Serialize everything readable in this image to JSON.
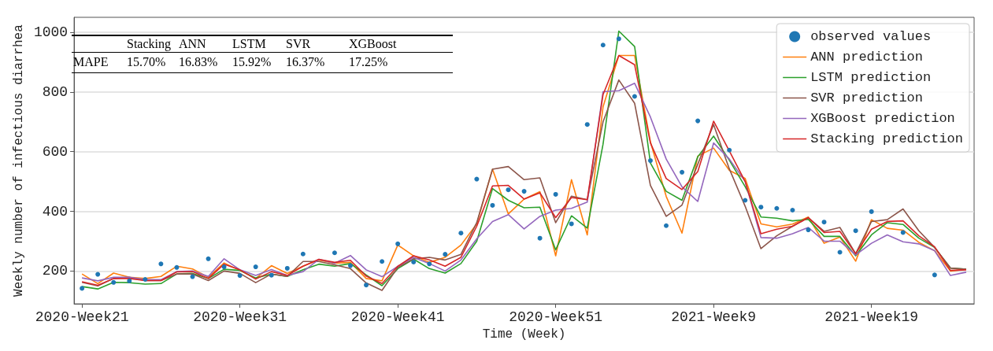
{
  "chart_data": {
    "type": "line",
    "xlabel": "Time (Week)",
    "ylabel": "Weekly number of infectious diarrhea",
    "categories": [
      "2020-Week21",
      null,
      null,
      null,
      null,
      null,
      null,
      null,
      null,
      null,
      "2020-Week31",
      null,
      null,
      null,
      null,
      null,
      null,
      null,
      null,
      null,
      "2020-Week41",
      null,
      null,
      null,
      null,
      null,
      null,
      null,
      null,
      null,
      "2020-Week51",
      null,
      null,
      null,
      null,
      null,
      null,
      null,
      null,
      null,
      "2021-Week9",
      null,
      null,
      null,
      null,
      null,
      null,
      null,
      null,
      null,
      "2021-Week19",
      null,
      null,
      null,
      null,
      null,
      null
    ],
    "ylim": [
      90,
      1050
    ],
    "yticks": [
      200,
      400,
      600,
      800,
      1000
    ],
    "grid": "y",
    "legend": "top right",
    "line_style": "solid",
    "marker": "none",
    "annotations": [
      "Stacking",
      "ANN",
      "LSTM",
      "SVR",
      "XGBoost",
      "MAPE",
      "15.70%",
      "16.83%",
      "15.92%",
      "16.37%",
      "17.25%"
    ],
    "series": [
      {
        "name": "observed values",
        "type": "scatter",
        "marker": "circle",
        "color": "#1f77b4",
        "values": [
          142,
          189,
          162,
          167,
          172,
          224,
          212,
          181,
          241,
          214,
          185,
          214,
          186,
          209,
          257,
          null,
          261,
          218,
          153,
          232,
          291,
          230,
          224,
          256,
          327,
          508,
          420,
          472,
          467,
          310,
          457,
          358,
          691,
          957,
          978,
          785,
          570,
          352,
          531,
          703,
          null,
          605,
          437,
          414,
          410,
          404,
          338,
          364,
          263,
          335,
          399,
          null,
          329,
          null,
          187,
          null,
          null
        ]
      },
      {
        "name": "ANN prediction",
        "color": "#ff7f0e",
        "values": [
          190,
          158,
          193,
          179,
          175,
          182,
          216,
          207,
          179,
          227,
          202,
          175,
          218,
          192,
          216,
          237,
          226,
          229,
          175,
          167,
          287,
          251,
          229,
          246,
          287,
          358,
          541,
          391,
          441,
          466,
          251,
          506,
          321,
          750,
          922,
          922,
          633,
          450,
          327,
          585,
          612,
          537,
          510,
          358,
          348,
          357,
          381,
          293,
          314,
          233,
          372,
          343,
          337,
          296,
          268,
          200,
          206
        ]
      },
      {
        "name": "LSTM prediction",
        "color": "#2ca02c",
        "values": [
          148,
          140,
          162,
          161,
          156,
          158,
          190,
          192,
          175,
          206,
          202,
          177,
          190,
          182,
          204,
          223,
          216,
          225,
          187,
          151,
          208,
          240,
          208,
          193,
          225,
          300,
          476,
          437,
          412,
          414,
          271,
          385,
          344,
          625,
          1004,
          952,
          562,
          467,
          437,
          583,
          652,
          571,
          483,
          381,
          377,
          368,
          373,
          316,
          316,
          251,
          321,
          362,
          356,
          310,
          279,
          210,
          206
        ]
      },
      {
        "name": "SVR prediction",
        "color": "#8c564b",
        "values": [
          162,
          150,
          175,
          179,
          168,
          168,
          190,
          190,
          168,
          200,
          192,
          161,
          190,
          182,
          232,
          232,
          221,
          208,
          160,
          135,
          212,
          241,
          246,
          237,
          256,
          362,
          541,
          550,
          506,
          512,
          362,
          451,
          439,
          700,
          840,
          762,
          487,
          383,
          421,
          558,
          691,
          542,
          417,
          275,
          318,
          350,
          379,
          333,
          346,
          258,
          366,
          372,
          408,
          335,
          279,
          210,
          206
        ]
      },
      {
        "name": "XGBoost prediction",
        "color": "#9467bd",
        "values": [
          177,
          167,
          179,
          179,
          171,
          171,
          198,
          200,
          182,
          241,
          204,
          185,
          205,
          185,
          198,
          239,
          226,
          252,
          204,
          181,
          216,
          246,
          225,
          200,
          237,
          308,
          366,
          389,
          341,
          383,
          404,
          410,
          431,
          801,
          804,
          829,
          716,
          575,
          482,
          433,
          629,
          575,
          500,
          312,
          310,
          325,
          346,
          300,
          300,
          254,
          293,
          321,
          298,
          291,
          268,
          185,
          196
        ]
      },
      {
        "name": "Stacking prediction",
        "color": "#d62728",
        "values": [
          164,
          152,
          175,
          175,
          168,
          168,
          197,
          198,
          175,
          223,
          204,
          173,
          198,
          185,
          216,
          239,
          229,
          236,
          183,
          158,
          216,
          251,
          237,
          216,
          246,
          350,
          485,
          487,
          441,
          462,
          379,
          446,
          439,
          791,
          922,
          891,
          629,
          510,
          473,
          533,
          702,
          602,
          500,
          325,
          340,
          350,
          379,
          329,
          333,
          258,
          340,
          366,
          368,
          318,
          281,
          202,
          204
        ]
      }
    ]
  }
}
